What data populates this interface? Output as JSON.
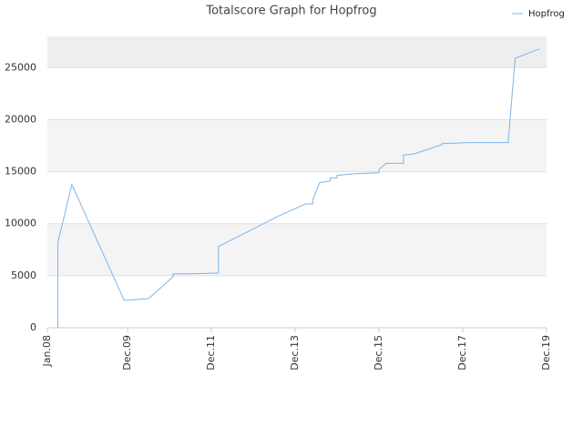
{
  "chart_data": {
    "type": "line",
    "title": "Totalscore Graph for Hopfrog",
    "x": [
      "2008-04",
      "2008-04",
      "2008-08",
      "2009-11",
      "2010-02",
      "2010-06",
      "2011-01",
      "2011-01",
      "2011-08",
      "2012-02",
      "2012-02",
      "2013-07",
      "2014-03",
      "2014-05",
      "2014-05",
      "2014-07",
      "2014-10",
      "2014-10",
      "2014-12",
      "2014-12",
      "2015-05",
      "2015-12",
      "2015-12",
      "2016-02",
      "2016-07",
      "2016-07",
      "2016-10",
      "2017-06",
      "2017-06",
      "2018-02",
      "2019-01",
      "2019-03",
      "2019-10"
    ],
    "series": [
      {
        "name": "Hopfrog",
        "color": "#7cb5ec",
        "values": [
          0,
          8160,
          13770,
          2630,
          2700,
          2800,
          4900,
          5170,
          5200,
          5260,
          7800,
          10700,
          11900,
          11900,
          12280,
          13950,
          14100,
          14400,
          14400,
          14650,
          14800,
          14900,
          15200,
          15800,
          15800,
          16600,
          16700,
          17600,
          17700,
          17800,
          17800,
          25900,
          26800
        ]
      }
    ],
    "xlim": [
      "2008-01",
      "2019-12"
    ],
    "xticks": [
      {
        "value": "2008-01",
        "label": "Jan.08"
      },
      {
        "value": "2009-12",
        "label": "Dec.09"
      },
      {
        "value": "2011-12",
        "label": "Dec.11"
      },
      {
        "value": "2013-12",
        "label": "Dec.13"
      },
      {
        "value": "2015-12",
        "label": "Dec.15"
      },
      {
        "value": "2017-12",
        "label": "Dec.17"
      },
      {
        "value": "2019-12",
        "label": "Dec.19"
      }
    ],
    "ylim": [
      0,
      28000
    ],
    "yticks": [
      0,
      5000,
      10000,
      15000,
      20000,
      25000
    ],
    "grid": true,
    "legend": "top-right"
  }
}
